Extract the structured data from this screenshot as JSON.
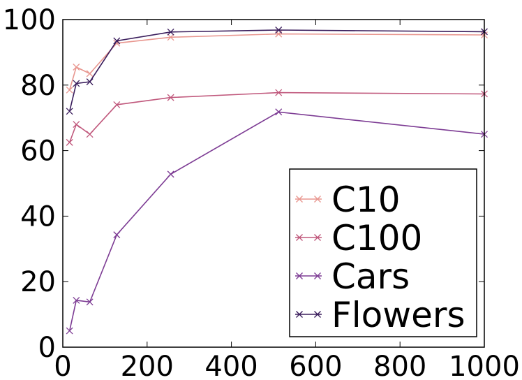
{
  "chart_data": {
    "type": "line",
    "title": "",
    "xlabel": "",
    "ylabel": "",
    "xlim": [
      0,
      1000
    ],
    "ylim": [
      0,
      100
    ],
    "xticks": [
      0,
      200,
      400,
      600,
      800,
      1000
    ],
    "yticks": [
      0,
      20,
      40,
      60,
      80,
      100
    ],
    "xtick_labels": [
      "0",
      "200",
      "400",
      "600",
      "800",
      "1000"
    ],
    "ytick_labels": [
      "0",
      "20",
      "40",
      "60",
      "80",
      "100"
    ],
    "grid": false,
    "legend_position": "lower-right",
    "x": [
      16,
      32,
      64,
      128,
      256,
      512,
      1000
    ],
    "series": [
      {
        "name": "C10",
        "color": "#e8968f",
        "values": [
          78.5,
          85.5,
          83.5,
          92.8,
          94.6,
          95.6,
          95.3
        ]
      },
      {
        "name": "C100",
        "color": "#c0587c",
        "values": [
          62.5,
          68.0,
          65.0,
          74.0,
          76.2,
          77.7,
          77.3
        ]
      },
      {
        "name": "Cars",
        "color": "#7d3c94",
        "values": [
          5.0,
          14.3,
          13.8,
          34.3,
          52.8,
          71.8,
          65.0
        ]
      },
      {
        "name": "Flowers",
        "color": "#3a1d5c",
        "values": [
          72.0,
          80.5,
          81.0,
          93.5,
          96.2,
          96.8,
          96.3
        ]
      }
    ]
  }
}
